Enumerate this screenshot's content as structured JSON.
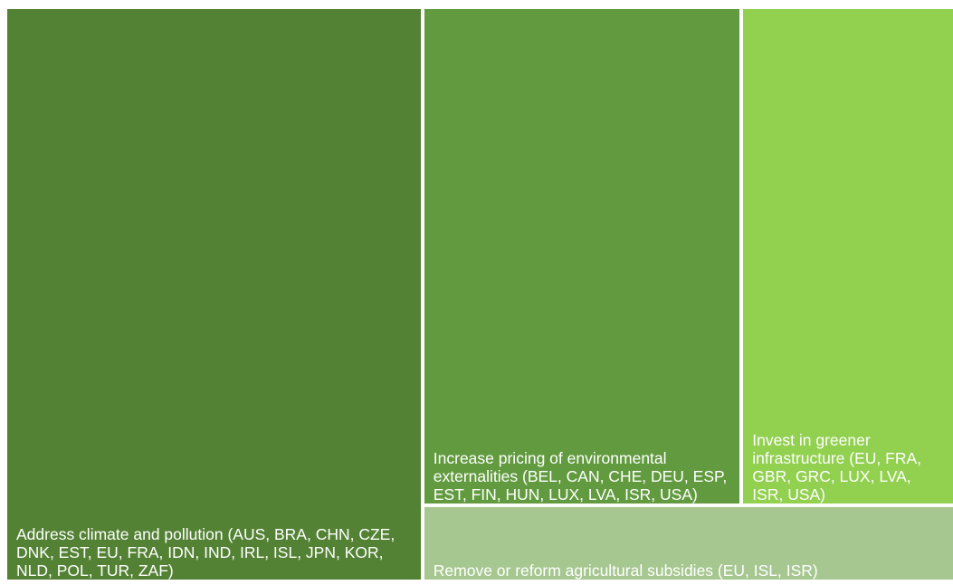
{
  "chart_data": {
    "type": "treemap",
    "categories": [
      "Address climate and pollution (AUS, BRA, CHN, CZE, DNK, EST, EU, FRA, IDN, IND, IRL, ISL, JPN, KOR, NLD, POL, TUR, ZAF)",
      "Increase pricing of environmental externalities (BEL, CAN, CHE, DEU, ESP, EST, FIN, HUN, LUX, LVA, ISR, USA)",
      "Invest in greener infrastructure (EU, FRA, GBR, GRC, LUX, LVA, ISR, USA)",
      "Remove or reform agricultural subsidies (EU, ISL, ISR)"
    ],
    "values": [
      18,
      12,
      8,
      3
    ],
    "colors": [
      "#548235",
      "#629b3f",
      "#92d050",
      "#a6c78f"
    ]
  }
}
